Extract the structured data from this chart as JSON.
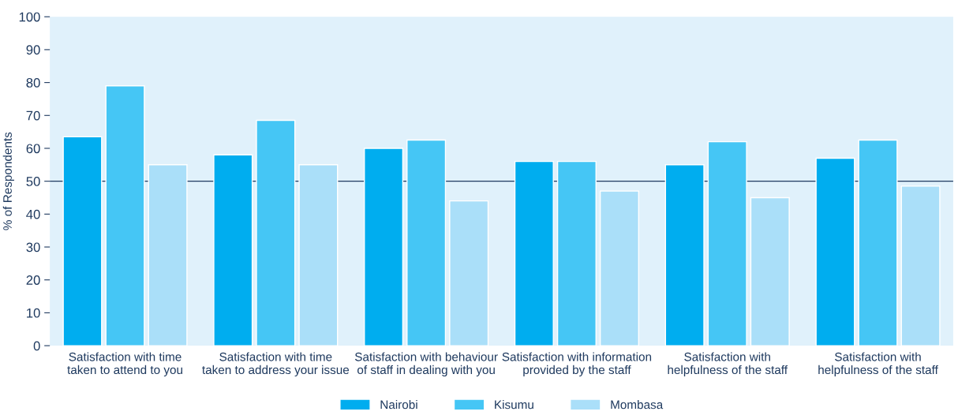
{
  "chart_data": {
    "type": "bar",
    "ylabel": "% of Respondents",
    "categories": [
      "Satisfaction with time\ntaken to attend to you",
      "Satisfaction with time\ntaken to address your issue",
      "Satisfaction with behaviour\nof staff in dealing with you",
      "Satisfaction with information\nprovided by the staff",
      "Satisfaction with\nhelpfulness of the staff",
      "Satisfaction with\nhelpfulness of the staff"
    ],
    "series": [
      {
        "name": "Nairobi",
        "color": "#00adef",
        "values": [
          63.5,
          58,
          60,
          56,
          55,
          57
        ]
      },
      {
        "name": "Kisumu",
        "color": "#45c6f5",
        "values": [
          79,
          68.5,
          62.5,
          56,
          62,
          62.5
        ]
      },
      {
        "name": "Mombasa",
        "color": "#aadff9",
        "values": [
          55,
          55,
          44,
          47,
          45,
          48.5
        ]
      }
    ],
    "ylim": [
      0,
      100
    ],
    "yticks": [
      0,
      10,
      20,
      30,
      40,
      50,
      60,
      70,
      80,
      90,
      100
    ],
    "ref_lines": [
      {
        "axis": "y",
        "value": 50,
        "color": "#1f3a5f"
      }
    ],
    "grid": false,
    "legend": "bottom"
  }
}
